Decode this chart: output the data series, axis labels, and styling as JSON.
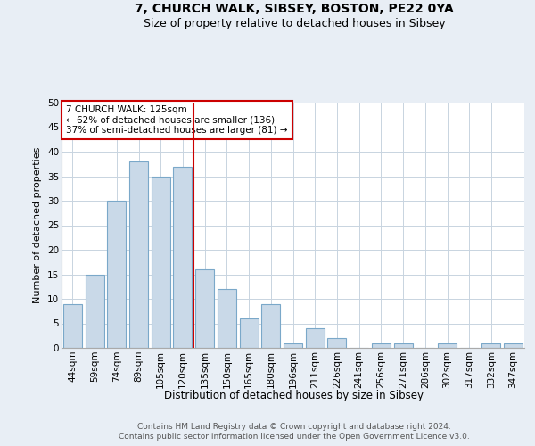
{
  "title1": "7, CHURCH WALK, SIBSEY, BOSTON, PE22 0YA",
  "title2": "Size of property relative to detached houses in Sibsey",
  "xlabel": "Distribution of detached houses by size in Sibsey",
  "ylabel": "Number of detached properties",
  "categories": [
    "44sqm",
    "59sqm",
    "74sqm",
    "89sqm",
    "105sqm",
    "120sqm",
    "135sqm",
    "150sqm",
    "165sqm",
    "180sqm",
    "196sqm",
    "211sqm",
    "226sqm",
    "241sqm",
    "256sqm",
    "271sqm",
    "286sqm",
    "302sqm",
    "317sqm",
    "332sqm",
    "347sqm"
  ],
  "values": [
    9,
    15,
    30,
    38,
    35,
    37,
    16,
    12,
    6,
    9,
    1,
    4,
    2,
    0,
    1,
    1,
    0,
    1,
    0,
    1,
    1
  ],
  "bar_color": "#c9d9e8",
  "bar_edge_color": "#7aa8c9",
  "property_size_label": "7 CHURCH WALK: 125sqm",
  "annotation_line1": "← 62% of detached houses are smaller (136)",
  "annotation_line2": "37% of semi-detached houses are larger (81) →",
  "vline_color": "#cc0000",
  "annotation_box_color": "#cc0000",
  "vline_x_index": 5.5,
  "ylim": [
    0,
    50
  ],
  "yticks": [
    0,
    5,
    10,
    15,
    20,
    25,
    30,
    35,
    40,
    45,
    50
  ],
  "bg_color": "#e8eef5",
  "plot_bg_color": "#ffffff",
  "footer1": "Contains HM Land Registry data © Crown copyright and database right 2024.",
  "footer2": "Contains public sector information licensed under the Open Government Licence v3.0.",
  "title1_fontsize": 10,
  "title2_fontsize": 9,
  "xlabel_fontsize": 8.5,
  "ylabel_fontsize": 8,
  "tick_fontsize": 7.5,
  "annotation_fontsize": 7.5,
  "footer_fontsize": 6.5
}
